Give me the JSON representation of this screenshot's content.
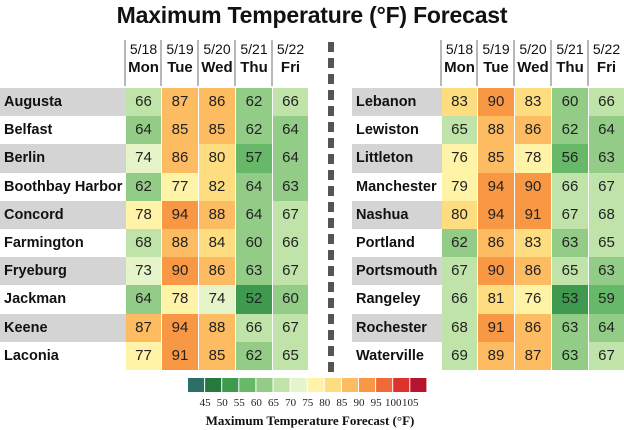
{
  "title": "Maximum Temperature (°F) Forecast",
  "chart_data": {
    "type": "heatmap",
    "title": "Maximum Temperature (°F) Forecast",
    "columns": [
      {
        "date": "5/18",
        "day": "Mon"
      },
      {
        "date": "5/19",
        "day": "Tue"
      },
      {
        "date": "5/20",
        "day": "Wed"
      },
      {
        "date": "5/21",
        "day": "Thu"
      },
      {
        "date": "5/22",
        "day": "Fri"
      }
    ],
    "panels": [
      {
        "rows": [
          {
            "city": "Augusta",
            "values": [
              66,
              87,
              86,
              62,
              66
            ]
          },
          {
            "city": "Belfast",
            "values": [
              64,
              85,
              85,
              62,
              64
            ]
          },
          {
            "city": "Berlin",
            "values": [
              74,
              86,
              80,
              57,
              64
            ]
          },
          {
            "city": "Boothbay Harbor",
            "values": [
              62,
              77,
              82,
              64,
              63
            ]
          },
          {
            "city": "Concord",
            "values": [
              78,
              94,
              88,
              64,
              67
            ]
          },
          {
            "city": "Farmington",
            "values": [
              68,
              88,
              84,
              60,
              66
            ]
          },
          {
            "city": "Fryeburg",
            "values": [
              73,
              90,
              86,
              63,
              67
            ]
          },
          {
            "city": "Jackman",
            "values": [
              64,
              78,
              74,
              52,
              60
            ]
          },
          {
            "city": "Keene",
            "values": [
              87,
              94,
              88,
              66,
              67
            ]
          },
          {
            "city": "Laconia",
            "values": [
              77,
              91,
              85,
              62,
              65
            ]
          }
        ]
      },
      {
        "rows": [
          {
            "city": "Lebanon",
            "values": [
              83,
              90,
              83,
              60,
              66
            ]
          },
          {
            "city": "Lewiston",
            "values": [
              65,
              88,
              86,
              62,
              64
            ]
          },
          {
            "city": "Littleton",
            "values": [
              76,
              85,
              78,
              56,
              63
            ]
          },
          {
            "city": "Manchester",
            "values": [
              79,
              94,
              90,
              66,
              67
            ]
          },
          {
            "city": "Nashua",
            "values": [
              80,
              94,
              91,
              67,
              68
            ]
          },
          {
            "city": "Portland",
            "values": [
              62,
              86,
              83,
              63,
              65
            ]
          },
          {
            "city": "Portsmouth",
            "values": [
              67,
              90,
              86,
              65,
              63
            ]
          },
          {
            "city": "Rangeley",
            "values": [
              66,
              81,
              76,
              53,
              59
            ]
          },
          {
            "city": "Rochester",
            "values": [
              68,
              91,
              86,
              63,
              64
            ]
          },
          {
            "city": "Waterville",
            "values": [
              69,
              89,
              87,
              63,
              67
            ]
          }
        ]
      }
    ],
    "legend": {
      "title": "Maximum Temperature Forecast (°F)",
      "ticks": [
        "45",
        "50",
        "55",
        "60",
        "65",
        "70",
        "75",
        "80",
        "85",
        "90",
        "95",
        "100",
        "105"
      ],
      "colors": [
        "#2b6f68",
        "#237a3c",
        "#3f9a50",
        "#67b868",
        "#92cc86",
        "#bfe3a8",
        "#e6f5c9",
        "#fff3a8",
        "#fedc80",
        "#fdbb62",
        "#f89845",
        "#f06a38",
        "#e0322c",
        "#b5142c"
      ]
    }
  }
}
